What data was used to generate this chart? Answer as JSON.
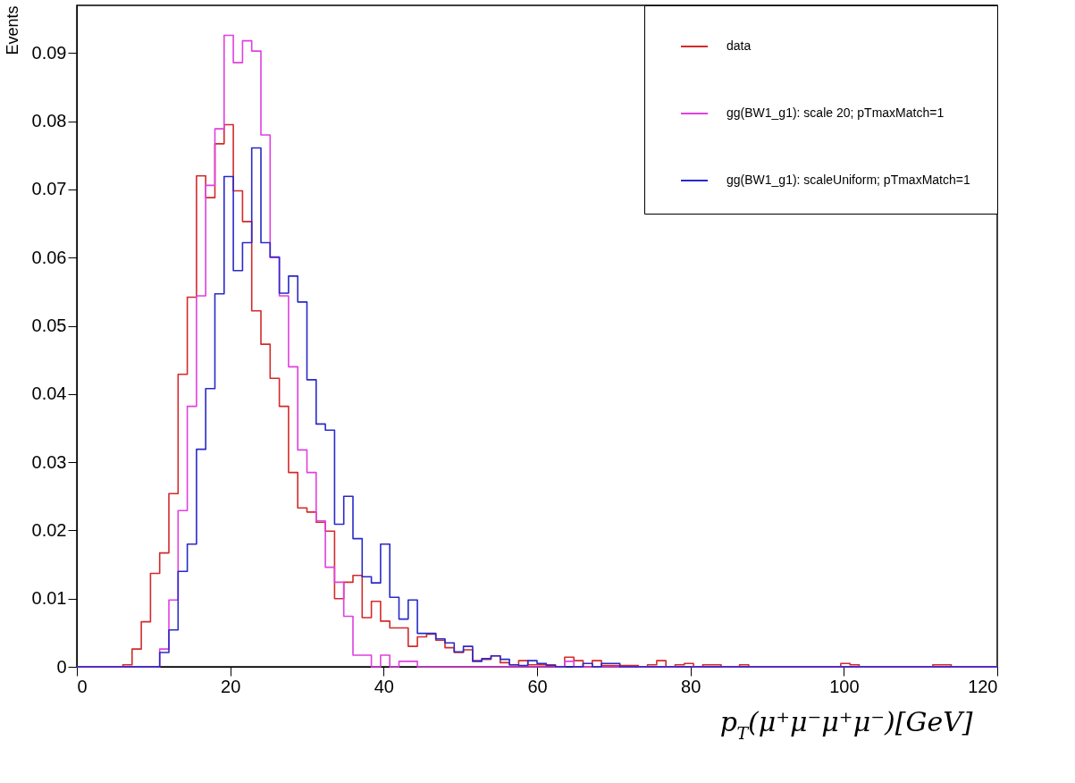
{
  "chart_data": {
    "type": "histogram",
    "xlabel": "p$_{T}$(μ⁺μ⁻μ⁺μ⁻)[GeV]",
    "ylabel": "Events",
    "bins": [
      0,
      1.2,
      2.4,
      3.6,
      4.8,
      6,
      7.2,
      8.4,
      9.6,
      10.8,
      12,
      13.2,
      14.4,
      15.6,
      16.8,
      18,
      19.2,
      20.4,
      21.6,
      22.8,
      24,
      25.2,
      26.4,
      27.6,
      28.8,
      30,
      31.2,
      32.4,
      33.6,
      34.8,
      36,
      37.2,
      38.4,
      39.6,
      40.8,
      42,
      43.2,
      44.4,
      45.6,
      46.8,
      48,
      49.2,
      50.4,
      51.6,
      52.8,
      54,
      55.2,
      56.4,
      57.6,
      58.8,
      60,
      61.2,
      62.4,
      63.6,
      64.8,
      66,
      67.2,
      68.4,
      69.6,
      70.8,
      72,
      73.2,
      74.4,
      75.6,
      76.8,
      78,
      79.2,
      80.4,
      81.6,
      82.8,
      84,
      85.2,
      86.4,
      87.6,
      88.8,
      90,
      91.2,
      92.4,
      93.6,
      94.8,
      96,
      97.2,
      98.4,
      99.6,
      100.8,
      102,
      103.2,
      104.4,
      105.6,
      106.8,
      108,
      109.2,
      110.4,
      111.6,
      112.8,
      114,
      115.2,
      116.4,
      117.6,
      118.8,
      120
    ],
    "series": [
      {
        "name": "data",
        "color": "#d42a2a",
        "values": [
          0,
          0,
          0,
          0,
          0,
          0.0003,
          0.0026,
          0.0066,
          0.0137,
          0.0167,
          0.0254,
          0.0429,
          0.0542,
          0.072,
          0.0688,
          0.0767,
          0.0795,
          0.0698,
          0.0653,
          0.0522,
          0.0473,
          0.0423,
          0.0382,
          0.0285,
          0.0233,
          0.0227,
          0.0212,
          0.0199,
          0.01,
          0.0124,
          0.0134,
          0.0072,
          0.0096,
          0.0067,
          0.0057,
          0.0057,
          0.003,
          0.0044,
          0.0048,
          0.0039,
          0.0028,
          0.0021,
          0.0025,
          0.0009,
          0.0011,
          0.0016,
          0.0006,
          0.0003,
          0.0009,
          0.0003,
          0.0003,
          0.0003,
          0,
          0.0014,
          0.0009,
          0,
          0.0009,
          0.0002,
          0.0002,
          0.0002,
          0.0002,
          0,
          0.0003,
          0.0009,
          0,
          0.0003,
          0.0005,
          0,
          0.0003,
          0.0003,
          0,
          0,
          0.0003,
          0,
          0,
          0,
          0,
          0,
          0,
          0,
          0,
          0,
          0,
          0.0005,
          0.0003,
          0,
          0,
          0,
          0,
          0,
          0,
          0,
          0,
          0.0003,
          0.0003,
          0,
          0,
          0,
          0,
          0
        ]
      },
      {
        "name": "gg(BW1_g1): scale 20; pTmaxMatch=1",
        "color": "#e040e0",
        "values": [
          0,
          0,
          0,
          0,
          0,
          0,
          0,
          0,
          0,
          0.0026,
          0.0098,
          0.0229,
          0.0382,
          0.0544,
          0.0706,
          0.0789,
          0.0926,
          0.0886,
          0.0918,
          0.0903,
          0.078,
          0.06,
          0.0544,
          0.044,
          0.0318,
          0.0285,
          0.0214,
          0.0146,
          0.0124,
          0.0074,
          0.0017,
          0.0017,
          0,
          0.0017,
          0,
          0.0008,
          0.0008,
          0,
          0,
          0,
          0,
          0,
          0,
          0,
          0,
          0,
          0,
          0,
          0,
          0,
          0,
          0,
          0,
          0.0008,
          0,
          0,
          0,
          0,
          0,
          0,
          0,
          0,
          0,
          0,
          0,
          0,
          0,
          0,
          0,
          0,
          0,
          0,
          0,
          0,
          0,
          0,
          0,
          0,
          0,
          0,
          0,
          0,
          0,
          0,
          0,
          0,
          0,
          0,
          0,
          0,
          0,
          0,
          0,
          0,
          0,
          0,
          0,
          0,
          0,
          0
        ]
      },
      {
        "name": "gg(BW1_g1): scaleUniform; pTmaxMatch=1",
        "color": "#2a2ac8",
        "values": [
          0,
          0,
          0,
          0,
          0,
          0,
          0,
          0,
          0,
          0.0021,
          0.0054,
          0.014,
          0.018,
          0.0319,
          0.0408,
          0.0547,
          0.0719,
          0.0581,
          0.0622,
          0.0761,
          0.0622,
          0.0601,
          0.0548,
          0.0573,
          0.0535,
          0.0421,
          0.0356,
          0.0347,
          0.0209,
          0.025,
          0.0188,
          0.0132,
          0.0123,
          0.018,
          0.0102,
          0.007,
          0.0098,
          0.0049,
          0.0049,
          0.0041,
          0.0035,
          0.0022,
          0.003,
          0.0008,
          0.0012,
          0.0016,
          0.0011,
          0.0003,
          0.0002,
          0.0009,
          0.0005,
          0.0002,
          0,
          0,
          0,
          0.0005,
          0,
          0.0005,
          0.0005,
          0,
          0,
          0,
          0,
          0,
          0,
          0,
          0,
          0,
          0,
          0,
          0,
          0,
          0,
          0,
          0,
          0,
          0,
          0,
          0,
          0,
          0,
          0,
          0,
          0,
          0,
          0,
          0,
          0,
          0,
          0,
          0,
          0,
          0,
          0,
          0,
          0,
          0,
          0,
          0,
          0
        ]
      }
    ],
    "xlim": [
      0,
      120
    ],
    "xticks": [
      0,
      20,
      40,
      60,
      80,
      100,
      120
    ],
    "ylim": [
      0,
      0.097
    ],
    "yticks": [
      0,
      0.01,
      0.02,
      0.03,
      0.04,
      0.05,
      0.06,
      0.07,
      0.08,
      0.09
    ],
    "grid": false,
    "legend": "top right"
  }
}
